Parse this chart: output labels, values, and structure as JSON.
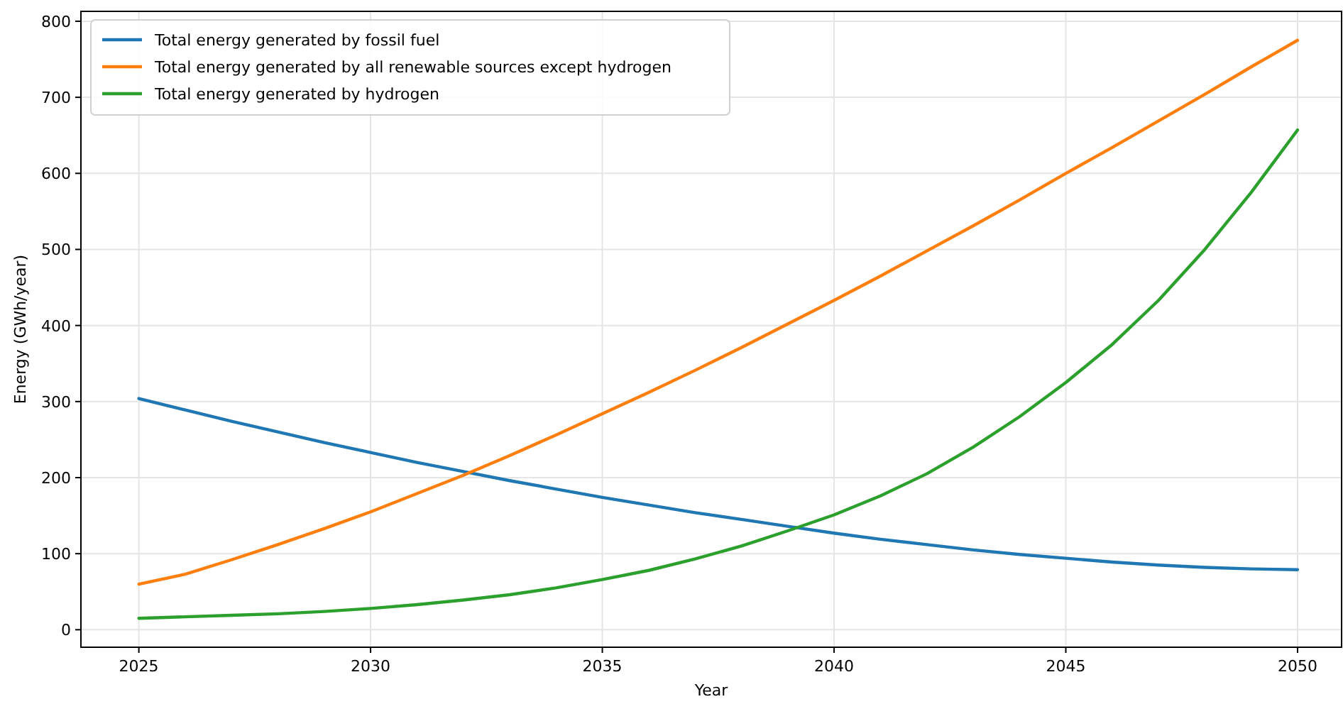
{
  "chart_data": {
    "type": "line",
    "xlabel": "Year",
    "ylabel": "Energy (GWh/year)",
    "x": [
      2025,
      2026,
      2027,
      2028,
      2029,
      2030,
      2031,
      2032,
      2033,
      2034,
      2035,
      2036,
      2037,
      2038,
      2039,
      2040,
      2041,
      2042,
      2043,
      2044,
      2045,
      2046,
      2047,
      2048,
      2049,
      2050
    ],
    "series": [
      {
        "name": "Total energy generated by fossil fuel",
        "color": "#1f77b4",
        "values": [
          304,
          289,
          274,
          260,
          246,
          233,
          220,
          208,
          196,
          185,
          174,
          164,
          154,
          145,
          136,
          127,
          119,
          112,
          105,
          99,
          94,
          89,
          85,
          82,
          80,
          79
        ]
      },
      {
        "name": "Total energy generated by all renewable sources except hydrogen",
        "color": "#ff7f0e",
        "values": [
          60,
          73,
          92,
          112,
          133,
          155,
          179,
          203,
          229,
          256,
          284,
          312,
          341,
          371,
          402,
          433,
          465,
          498,
          531,
          565,
          600,
          634,
          669,
          704,
          740,
          775
        ]
      },
      {
        "name": "Total energy generated by hydrogen",
        "color": "#2ca02c",
        "values": [
          15,
          17,
          19,
          21,
          24,
          28,
          33,
          39,
          46,
          55,
          66,
          78,
          93,
          110,
          130,
          151,
          176,
          205,
          240,
          280,
          325,
          375,
          433,
          500,
          575,
          657
        ]
      }
    ],
    "xlim": [
      2023.75,
      2050.95
    ],
    "ylim": [
      -23,
      813
    ],
    "xticks": [
      2025,
      2030,
      2035,
      2040,
      2045,
      2050
    ],
    "yticks": [
      0,
      100,
      200,
      300,
      400,
      500,
      600,
      700,
      800
    ],
    "grid": true,
    "legend": "top left",
    "marker": "none",
    "line_style": "solid"
  }
}
